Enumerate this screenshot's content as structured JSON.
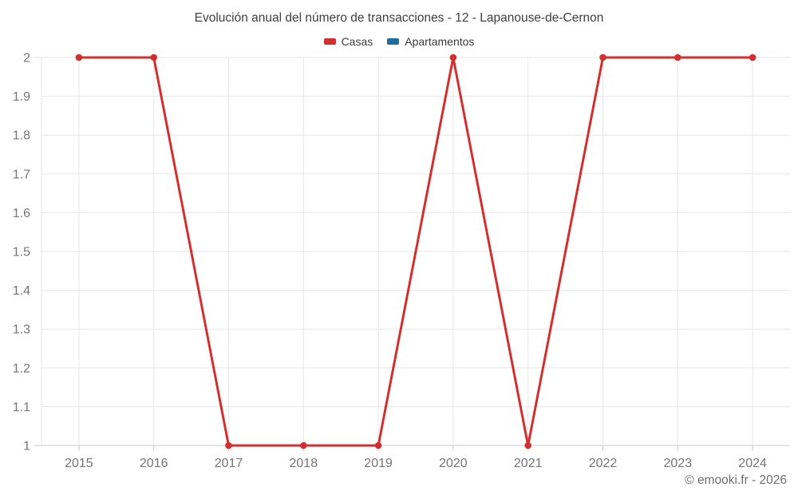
{
  "title": "Evolución anual del número de transacciones - 12 - Lapanouse-de-Cernon",
  "legend": {
    "items": [
      {
        "label": "Casas",
        "color": "#d32f2f"
      },
      {
        "label": "Apartamentos",
        "color": "#1a6d9e"
      }
    ]
  },
  "footer": {
    "copyright": "© emooki.fr - 2026"
  },
  "chart_data": {
    "type": "line",
    "title": "Evolución anual del número de transacciones - 12 - Lapanouse-de-Cernon",
    "categories": [
      "2015",
      "2016",
      "2017",
      "2018",
      "2019",
      "2020",
      "2021",
      "2022",
      "2023",
      "2024"
    ],
    "series": [
      {
        "name": "Casas",
        "color": "#d32f2f",
        "values": [
          2,
          2,
          1,
          1,
          1,
          2,
          1,
          2,
          2,
          2
        ]
      },
      {
        "name": "Apartamentos",
        "color": "#1a6d9e",
        "values": []
      }
    ],
    "xlabel": "",
    "ylabel": "",
    "ylim": [
      1,
      2
    ],
    "ytick_step": 0.1,
    "grid": true,
    "legend_position": "top",
    "marker": "circle",
    "colors": {
      "grid": "#e6e6e6",
      "axis": "#c9c9c9",
      "tick_label": "#757575",
      "title_text": "#3f3f3f",
      "footer_text": "#6e6e6e",
      "background": "#ffffff"
    }
  }
}
